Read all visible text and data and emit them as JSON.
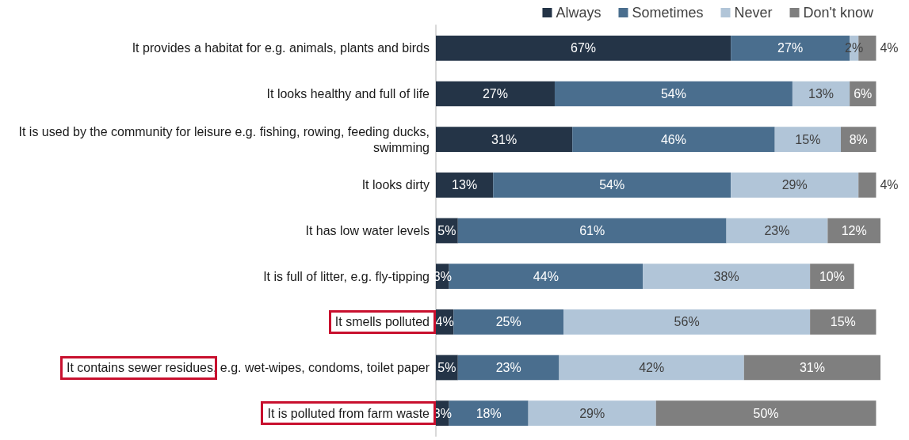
{
  "chart_data": {
    "type": "bar",
    "orientation": "horizontal",
    "stacked": true,
    "legend": "top right",
    "tick_labels": "y",
    "categories": [
      "It provides a habitat for e.g. animals, plants and birds",
      "It looks healthy and full of life",
      "It is used by the community for leisure e.g. fishing, rowing, feeding ducks, swimming",
      "It looks dirty",
      "It has low water levels",
      "It is full of litter, e.g. fly-tipping",
      "It smells polluted",
      "It contains sewer residues, e.g. wet-wipes, condoms, toilet paper",
      "It is polluted from farm waste"
    ],
    "series": [
      {
        "name": "Always",
        "color": "#243447",
        "values": [
          67,
          27,
          31,
          13,
          5,
          3,
          4,
          5,
          3
        ],
        "value_labels": [
          "67%",
          "27%",
          "31%",
          "13%",
          "5%",
          "3%",
          "4%",
          "5%",
          "3%"
        ]
      },
      {
        "name": "Sometimes",
        "color": "#4a6e8e",
        "values": [
          27,
          54,
          46,
          54,
          61,
          44,
          25,
          23,
          18
        ],
        "value_labels": [
          "27%",
          "54%",
          "46%",
          "54%",
          "61%",
          "44%",
          "25%",
          "23%",
          "18%"
        ]
      },
      {
        "name": "Never",
        "color": "#b1c5d8",
        "values": [
          2,
          13,
          15,
          29,
          23,
          38,
          56,
          42,
          29
        ],
        "value_labels": [
          "2%",
          "13%",
          "15%",
          "29%",
          "23%",
          "38%",
          "56%",
          "42%",
          "29%"
        ]
      },
      {
        "name": "Don't know",
        "color": "#7f7f7f",
        "values": [
          4,
          6,
          8,
          4,
          12,
          10,
          15,
          31,
          50
        ],
        "value_labels": [
          "4%",
          "6%",
          "8%",
          "4%",
          "12%",
          "10%",
          "15%",
          "31%",
          "50%"
        ]
      }
    ]
  }
}
